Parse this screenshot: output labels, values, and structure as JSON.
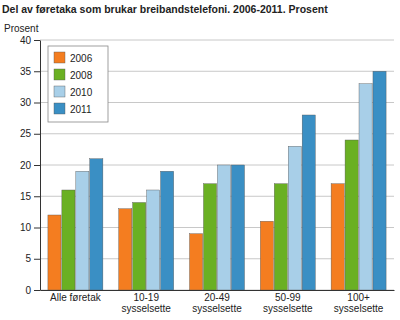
{
  "chart_data": {
    "type": "bar",
    "title": "Del av føretaka som brukar breibandstelefoni. 2006-2011. Prosent",
    "y_label": "Prosent",
    "categories": [
      "Alle føretak",
      "10-19\nsysselsette",
      "20-49\nsysselsette",
      "50-99\nsysselsette",
      "100+\nsysselsette"
    ],
    "series": [
      {
        "name": "2006",
        "color": "#f47d20",
        "values": [
          12,
          13,
          9,
          11,
          17
        ]
      },
      {
        "name": "2008",
        "color": "#6ab023",
        "values": [
          16,
          14,
          17,
          17,
          24
        ]
      },
      {
        "name": "2010",
        "color": "#a8cfe8",
        "values": [
          19,
          16,
          20,
          23,
          33
        ]
      },
      {
        "name": "2011",
        "color": "#3a8fc4",
        "values": [
          21,
          19,
          20,
          28,
          35
        ]
      }
    ],
    "ylim": [
      0,
      40
    ],
    "yticks": [
      0,
      5,
      10,
      15,
      20,
      25,
      30,
      35,
      40
    ],
    "grid": true,
    "legend": "top-left"
  }
}
